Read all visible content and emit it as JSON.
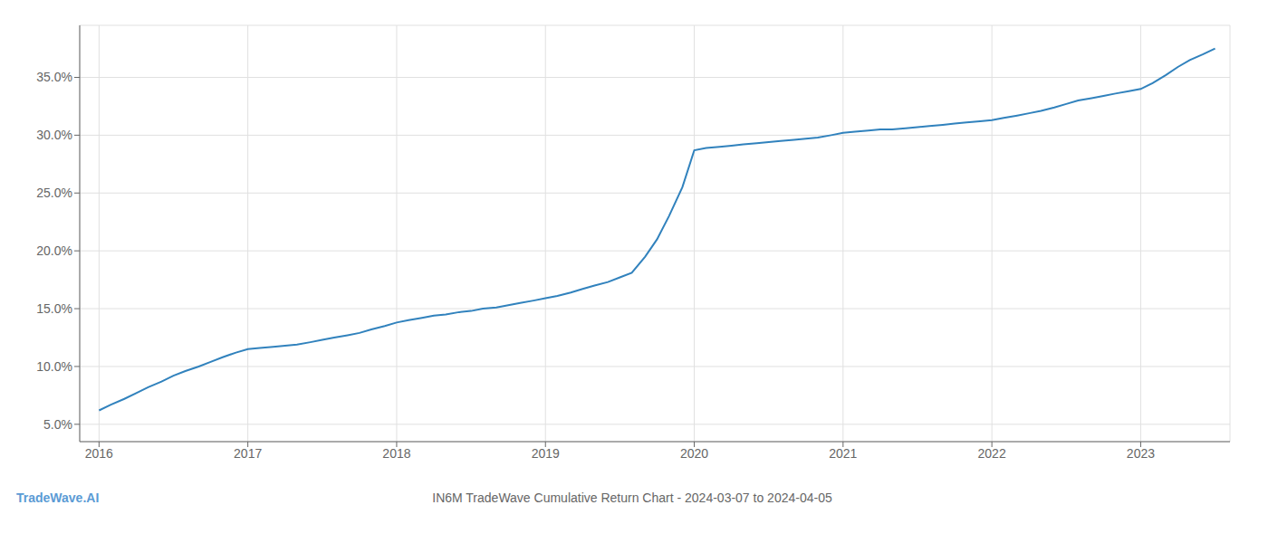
{
  "chart_data": {
    "type": "line",
    "title": "IN6M TradeWave Cumulative Return Chart - 2024-03-07 to 2024-04-05",
    "annotations": [
      "TradeWave.AI"
    ],
    "x": [
      2016.0,
      2016.08,
      2016.17,
      2016.25,
      2016.33,
      2016.42,
      2016.5,
      2016.58,
      2016.67,
      2016.75,
      2016.83,
      2016.92,
      2017.0,
      2017.08,
      2017.17,
      2017.25,
      2017.33,
      2017.42,
      2017.5,
      2017.58,
      2017.67,
      2017.75,
      2017.83,
      2017.92,
      2018.0,
      2018.08,
      2018.17,
      2018.25,
      2018.33,
      2018.42,
      2018.5,
      2018.58,
      2018.67,
      2018.75,
      2018.83,
      2018.92,
      2019.0,
      2019.08,
      2019.17,
      2019.25,
      2019.33,
      2019.42,
      2019.5,
      2019.58,
      2019.67,
      2019.75,
      2019.83,
      2019.92,
      2020.0,
      2020.08,
      2020.17,
      2020.25,
      2020.33,
      2020.42,
      2020.5,
      2020.58,
      2020.67,
      2020.75,
      2020.83,
      2020.92,
      2021.0,
      2021.08,
      2021.17,
      2021.25,
      2021.33,
      2021.42,
      2021.5,
      2021.58,
      2021.67,
      2021.75,
      2021.83,
      2021.92,
      2022.0,
      2022.08,
      2022.17,
      2022.25,
      2022.33,
      2022.42,
      2022.5,
      2022.58,
      2022.67,
      2022.75,
      2022.83,
      2022.92,
      2023.0,
      2023.08,
      2023.17,
      2023.25,
      2023.33,
      2023.42,
      2023.5
    ],
    "values": [
      6.2,
      6.7,
      7.2,
      7.7,
      8.2,
      8.7,
      9.2,
      9.6,
      10.0,
      10.4,
      10.8,
      11.2,
      11.5,
      11.6,
      11.7,
      11.8,
      11.9,
      12.1,
      12.3,
      12.5,
      12.7,
      12.9,
      13.2,
      13.5,
      13.8,
      14.0,
      14.2,
      14.4,
      14.5,
      14.7,
      14.8,
      15.0,
      15.1,
      15.3,
      15.5,
      15.7,
      15.9,
      16.1,
      16.4,
      16.7,
      17.0,
      17.3,
      17.7,
      18.1,
      19.5,
      21.0,
      23.0,
      25.5,
      28.7,
      28.9,
      29.0,
      29.1,
      29.2,
      29.3,
      29.4,
      29.5,
      29.6,
      29.7,
      29.8,
      30.0,
      30.2,
      30.3,
      30.4,
      30.5,
      30.5,
      30.6,
      30.7,
      30.8,
      30.9,
      31.0,
      31.1,
      31.2,
      31.3,
      31.5,
      31.7,
      31.9,
      32.1,
      32.4,
      32.7,
      33.0,
      33.2,
      33.4,
      33.6,
      33.8,
      34.0,
      34.5,
      35.2,
      35.9,
      36.5,
      37.0,
      37.5
    ],
    "xlim": [
      2015.87,
      2023.6
    ],
    "xticks": [
      2016,
      2017,
      2018,
      2019,
      2020,
      2021,
      2022,
      2023
    ],
    "ylim": [
      3.5,
      39.5
    ],
    "yticks": [
      {
        "value": 5.0,
        "label": "5.0%"
      },
      {
        "value": 10.0,
        "label": "10.0%"
      },
      {
        "value": 15.0,
        "label": "15.0%"
      },
      {
        "value": 20.0,
        "label": "20.0%"
      },
      {
        "value": 25.0,
        "label": "25.0%"
      },
      {
        "value": 30.0,
        "label": "30.0%"
      },
      {
        "value": 35.0,
        "label": "35.0%"
      }
    ],
    "grid": true
  }
}
